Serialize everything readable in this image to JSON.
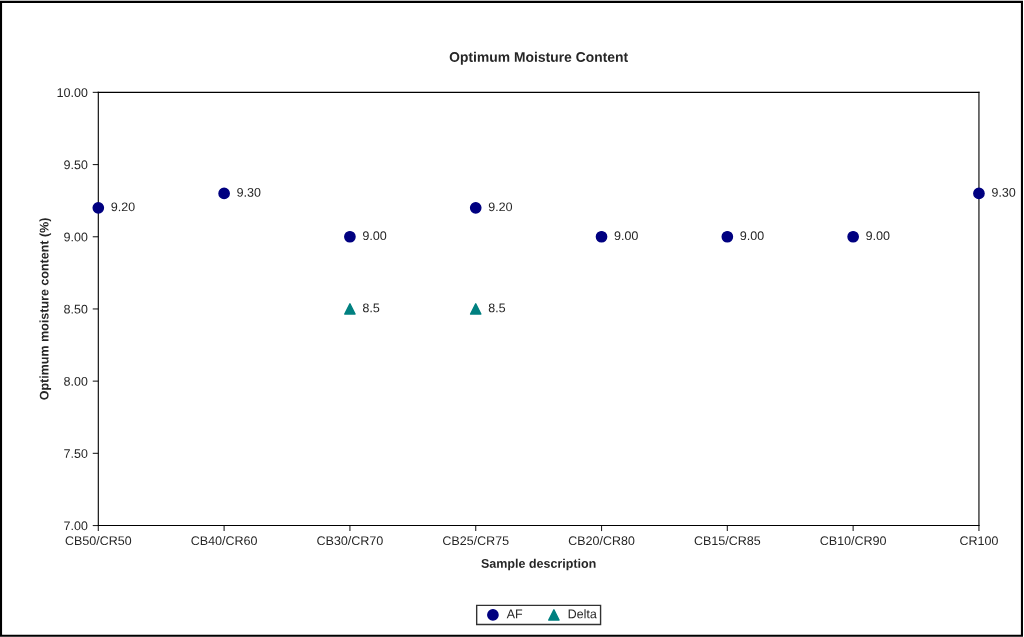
{
  "chart_data": {
    "type": "scatter",
    "title": "Optimum Moisture Content",
    "xlabel": "Sample description",
    "ylabel": "Optimum moisture content (%)",
    "categories": [
      "CB50/CR50",
      "CB40/CR60",
      "CB30/CR70",
      "CB25/CR75",
      "CB20/CR80",
      "CB15/CR85",
      "CB10/CR90",
      "CR100"
    ],
    "series": [
      {
        "name": "AF",
        "color": "#000080",
        "marker": "circle",
        "values": [
          9.2,
          9.3,
          9.0,
          9.2,
          9.0,
          9.0,
          9.0,
          9.3
        ],
        "value_labels": [
          "9.20",
          "9.30",
          "9.00",
          "9.20",
          "9.00",
          "9.00",
          "9.00",
          "9.30"
        ]
      },
      {
        "name": "Delta",
        "color": "#008080",
        "marker": "triangle",
        "values": [
          null,
          null,
          8.5,
          8.5,
          null,
          null,
          null,
          null
        ],
        "value_labels": [
          null,
          null,
          "8.5",
          "8.5",
          null,
          null,
          null,
          null
        ]
      }
    ],
    "ylim": [
      7.0,
      10.0
    ],
    "yticks": [
      {
        "value": 7.0,
        "label": "7.00"
      },
      {
        "value": 7.5,
        "label": "7.50"
      },
      {
        "value": 8.0,
        "label": "8.00"
      },
      {
        "value": 8.5,
        "label": "8.50"
      },
      {
        "value": 9.0,
        "label": "9.00"
      },
      {
        "value": 9.5,
        "label": "9.50"
      },
      {
        "value": 10.0,
        "label": "10.00"
      }
    ],
    "grid": false,
    "legend": "bottom"
  }
}
